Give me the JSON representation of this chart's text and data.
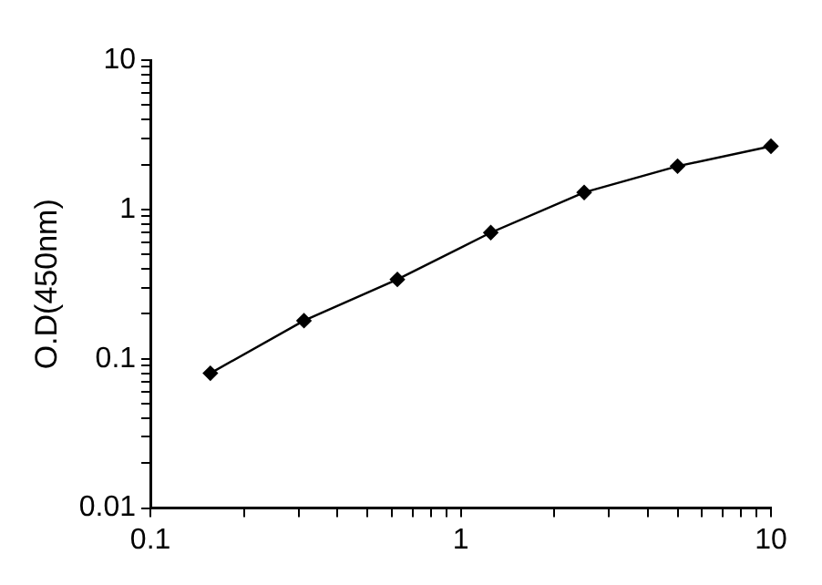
{
  "chart_data": {
    "type": "line",
    "ylabel": "O.D(450nm)",
    "log": "xy",
    "grid": false,
    "legend": false,
    "marker": "diamond",
    "line_style": "solid",
    "x": [
      0.156,
      0.3125,
      0.625,
      1.25,
      2.5,
      5,
      10
    ],
    "series": [
      {
        "color": "#000000",
        "values": [
          0.08,
          0.18,
          0.34,
          0.7,
          1.3,
          1.95,
          2.65
        ]
      }
    ],
    "xlim": [
      0.1,
      10
    ],
    "ylim": [
      0.01,
      10
    ],
    "xticks": [
      0.1,
      {
        "value": 0.2,
        "label": null
      },
      {
        "value": 0.3,
        "label": null
      },
      {
        "value": 0.4,
        "label": null
      },
      {
        "value": 0.5,
        "label": null
      },
      {
        "value": 0.6,
        "label": null
      },
      {
        "value": 0.7,
        "label": null
      },
      {
        "value": 0.8,
        "label": null
      },
      {
        "value": 0.9,
        "label": null
      },
      1,
      {
        "value": 2,
        "label": null
      },
      {
        "value": 3,
        "label": null
      },
      {
        "value": 4,
        "label": null
      },
      {
        "value": 5,
        "label": null
      },
      {
        "value": 6,
        "label": null
      },
      {
        "value": 7,
        "label": null
      },
      {
        "value": 8,
        "label": null
      },
      {
        "value": 9,
        "label": null
      },
      10
    ],
    "yticks": [
      0.01,
      {
        "value": 0.02,
        "label": null
      },
      {
        "value": 0.03,
        "label": null
      },
      {
        "value": 0.04,
        "label": null
      },
      {
        "value": 0.05,
        "label": null
      },
      {
        "value": 0.06,
        "label": null
      },
      {
        "value": 0.07,
        "label": null
      },
      {
        "value": 0.08,
        "label": null
      },
      {
        "value": 0.09,
        "label": null
      },
      0.1,
      {
        "value": 0.2,
        "label": null
      },
      {
        "value": 0.3,
        "label": null
      },
      {
        "value": 0.4,
        "label": null
      },
      {
        "value": 0.5,
        "label": null
      },
      {
        "value": 0.6,
        "label": null
      },
      {
        "value": 0.7,
        "label": null
      },
      {
        "value": 0.8,
        "label": null
      },
      {
        "value": 0.9,
        "label": null
      },
      1,
      {
        "value": 2,
        "label": null
      },
      {
        "value": 3,
        "label": null
      },
      {
        "value": 4,
        "label": null
      },
      {
        "value": 5,
        "label": null
      },
      {
        "value": 6,
        "label": null
      },
      {
        "value": 7,
        "label": null
      },
      {
        "value": 8,
        "label": null
      },
      {
        "value": 9,
        "label": null
      },
      10
    ]
  }
}
